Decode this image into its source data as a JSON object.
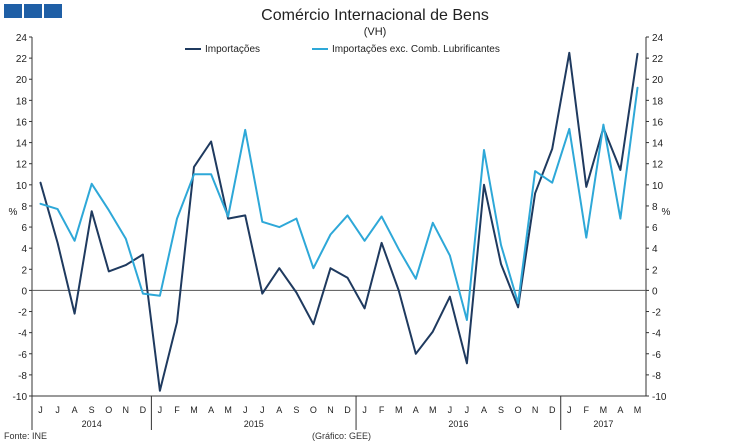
{
  "header": {
    "title": "Comércio Internacional de Bens",
    "subtitle": "(VH)"
  },
  "footer": {
    "source": "Fonte: INE",
    "graphic": "(Gráfico: GEE)"
  },
  "colors": {
    "series1": "#1f3a5f",
    "series2": "#2ea8d8",
    "logo": "#1f5fa6"
  },
  "chart_data": {
    "type": "line",
    "ylabel_left": "%",
    "ylabel_right": "%",
    "ylim": [
      -10,
      24
    ],
    "yticks": [
      -10,
      -8,
      -6,
      -4,
      -2,
      0,
      2,
      4,
      6,
      8,
      10,
      12,
      14,
      16,
      18,
      20,
      22,
      24
    ],
    "month_labels": [
      "J",
      "J",
      "A",
      "S",
      "O",
      "N",
      "D",
      "J",
      "F",
      "M",
      "A",
      "M",
      "J",
      "J",
      "A",
      "S",
      "O",
      "N",
      "D",
      "J",
      "F",
      "M",
      "A",
      "M",
      "J",
      "J",
      "A",
      "S",
      "O",
      "N",
      "D",
      "J",
      "F",
      "M",
      "A",
      "M"
    ],
    "years": [
      {
        "label": "2014",
        "start": 0,
        "end": 7
      },
      {
        "label": "2015",
        "start": 7,
        "end": 19
      },
      {
        "label": "2016",
        "start": 19,
        "end": 31
      },
      {
        "label": "2017",
        "start": 31,
        "end": 36
      }
    ],
    "series": [
      {
        "name": "Importações",
        "values": [
          10.2,
          4.5,
          -2.2,
          7.5,
          1.8,
          2.4,
          3.4,
          -9.5,
          -3.0,
          11.7,
          14.1,
          6.8,
          7.1,
          -0.3,
          2.1,
          -0.2,
          -3.2,
          2.1,
          1.2,
          -1.7,
          4.5,
          0.0,
          -6.0,
          -3.9,
          -0.6,
          -6.9,
          10.0,
          2.5,
          -1.6,
          9.2,
          13.4,
          22.5,
          9.8,
          15.4,
          11.4,
          22.4
        ]
      },
      {
        "name": "Importações exc. Comb. Lubrificantes",
        "values": [
          8.2,
          7.7,
          4.7,
          10.1,
          7.6,
          4.9,
          -0.3,
          -0.5,
          6.8,
          11.0,
          11.0,
          7.0,
          15.2,
          6.5,
          6.0,
          6.8,
          2.1,
          5.3,
          7.1,
          4.7,
          7.0,
          3.9,
          1.1,
          6.4,
          3.3,
          -2.8,
          13.3,
          4.3,
          -1.2,
          11.3,
          10.2,
          15.3,
          5.0,
          15.7,
          6.8,
          19.2
        ]
      }
    ]
  }
}
